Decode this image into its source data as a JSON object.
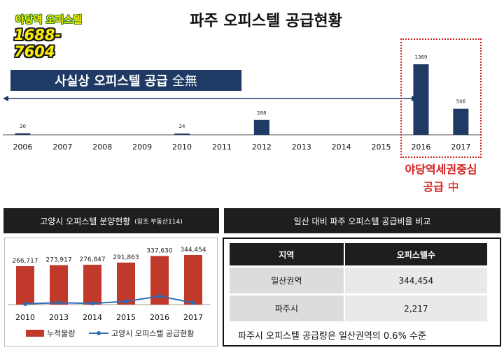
{
  "badge": {
    "line1": "야당역 오피스텔",
    "line2": "1688-7604"
  },
  "title": "파주 오피스텔 공급현황",
  "banner": {
    "text": "사실상 오피스텔 공급",
    "tail": "全無"
  },
  "highlight_note": {
    "line1": "야당역세권중심",
    "line2": "공급",
    "line2_tail": "中"
  },
  "colors": {
    "bar_navy": "#1f3a64",
    "bar_red": "#c0392b",
    "line_blue": "#2f6db5",
    "accent_red": "#d42020"
  },
  "chart_data": [
    {
      "type": "bar",
      "title": "파주 오피스텔 공급현황",
      "categories": [
        "2006",
        "2007",
        "2008",
        "2009",
        "2010",
        "2011",
        "2012",
        "2013",
        "2014",
        "2015",
        "2016",
        "2017"
      ],
      "values": [
        30,
        null,
        null,
        null,
        24,
        null,
        288,
        null,
        null,
        null,
        1369,
        506
      ],
      "data_labels": [
        "30",
        "",
        "",
        "",
        "24",
        "",
        "288",
        "",
        "",
        "",
        "1369",
        "506"
      ],
      "ylim": [
        0,
        1369
      ],
      "grid": false
    },
    {
      "type": "bar",
      "title": "고양시 오피스텔 분양현황",
      "categories": [
        "2010",
        "2013",
        "2014",
        "2015",
        "2016",
        "2017"
      ],
      "series": [
        {
          "name": "누적물량",
          "values": [
            266717,
            273917,
            276847,
            291863,
            337630,
            344454
          ],
          "labels": [
            "266,717",
            "273,917",
            "276,847",
            "291,863",
            "337,630",
            "344,454"
          ]
        },
        {
          "name": "고양시 오피스텔 공급현황",
          "type": "line",
          "values": [
            0,
            7200,
            2930,
            15016,
            45767,
            6824
          ]
        }
      ],
      "legend": "bottom",
      "grid": false
    }
  ],
  "left_section": {
    "title": "고양시 오피스텔 분양현황",
    "note": "(참조 부동산114)"
  },
  "right_section": {
    "title": "일산 대비 파주 오피스텔 공급비율 비교"
  },
  "table": {
    "headers": [
      "지역",
      "오피스텔수"
    ],
    "rows": [
      {
        "region": "일산권역",
        "count": "344,454"
      },
      {
        "region": "파주시",
        "count": "2,217"
      }
    ]
  },
  "summary": "파주시 오피스텔 공급량은 일산권역의 0.6% 수준"
}
